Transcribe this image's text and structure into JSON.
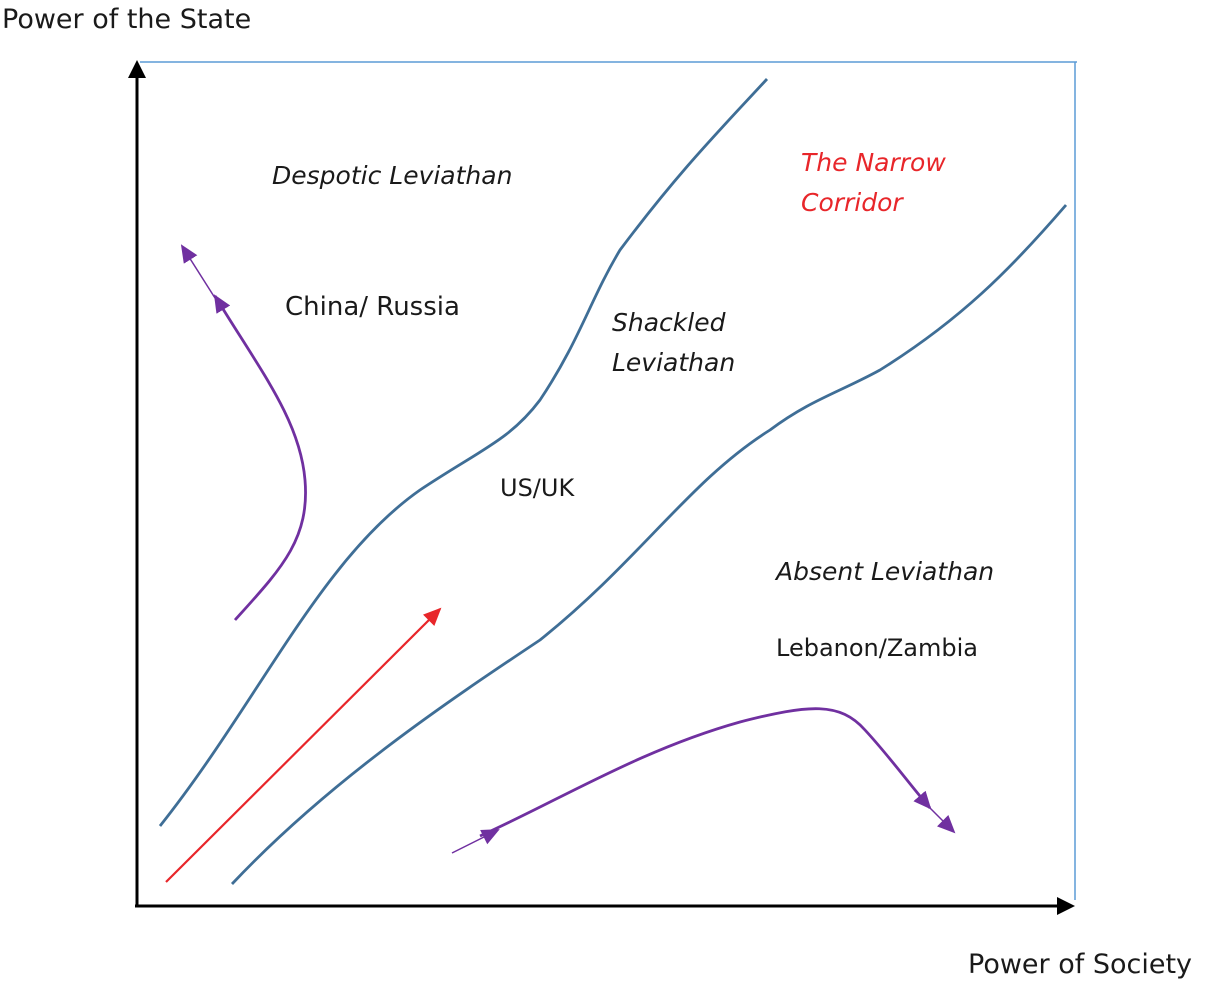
{
  "axes": {
    "y_label": "Power of the State",
    "x_label": "Power of Society"
  },
  "regions": {
    "despotic": "Despotic Leviathan",
    "corridor": "The Narrow Corridor",
    "shackled": "Shackled Leviathan",
    "absent": "Absent Leviathan"
  },
  "countries": {
    "despotic": "China/ Russia",
    "shackled": "US/UK",
    "absent": "Lebanon/Zambia"
  },
  "colors": {
    "boundary": "#3f6e96",
    "path": "#7030a0",
    "corridor_arrow": "#e8262a",
    "corridor_text": "#e8262a",
    "frame": "#5b9bd5",
    "axis": "#000000"
  }
}
